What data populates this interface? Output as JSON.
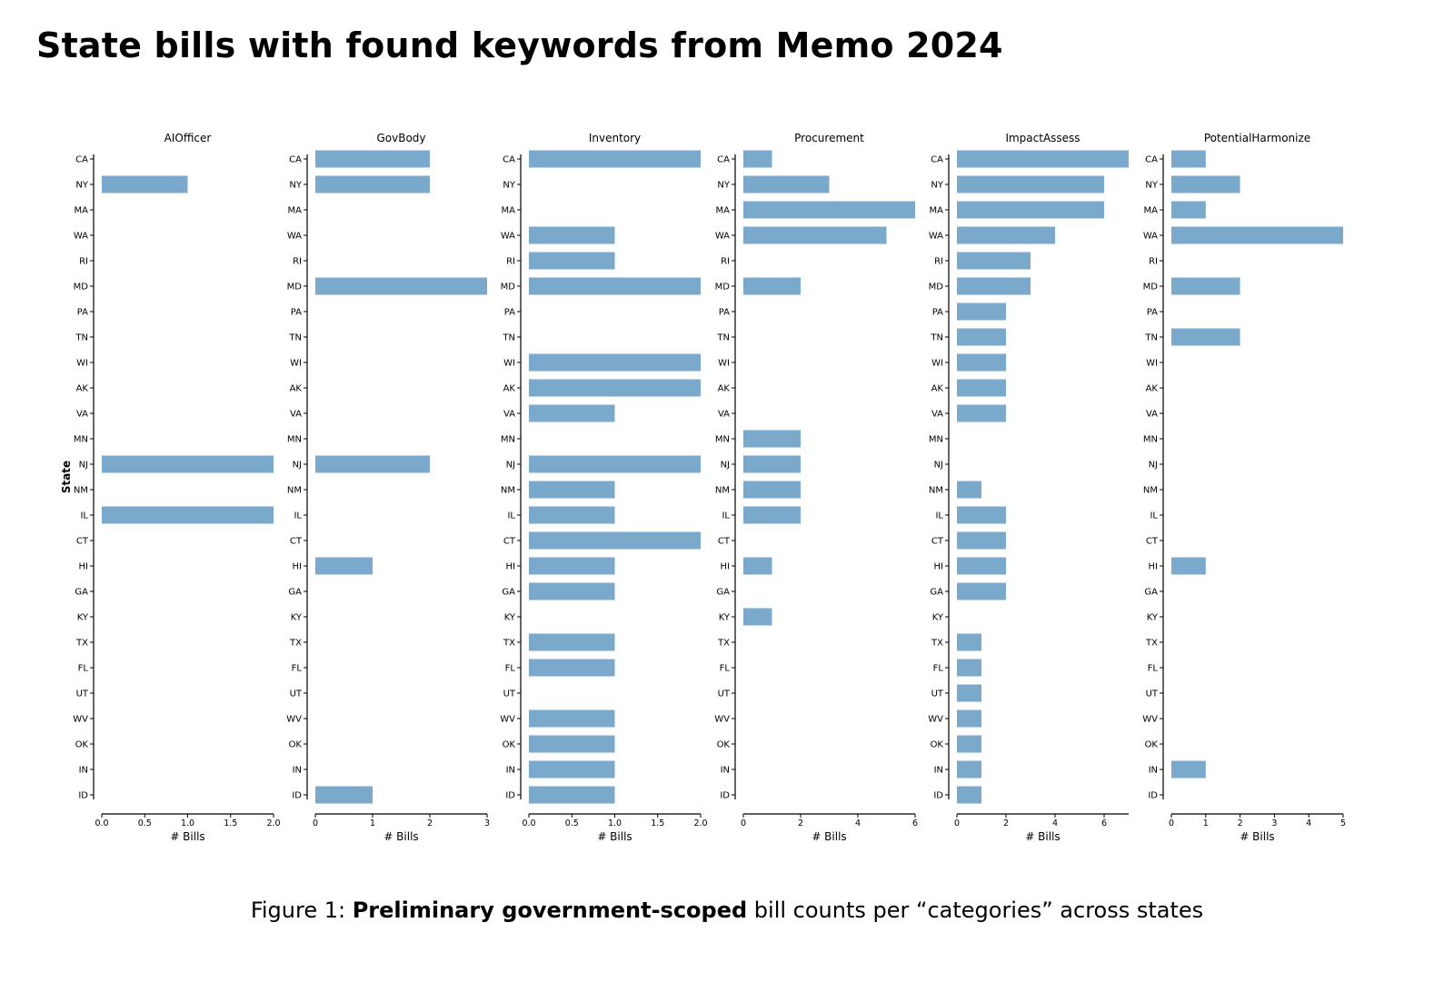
{
  "title": "State bills with found keywords from Memo 2024",
  "caption": {
    "prefix": "Figure 1: ",
    "bold": "Preliminary government-scoped",
    "rest": " bill counts per “categories” across states"
  },
  "colors": {
    "bar": "#7aa9cb",
    "axis": "#000000"
  },
  "chart_data": {
    "type": "bar",
    "orientation": "horizontal",
    "ylabel": "State",
    "xlabel": "# Bills",
    "categories": [
      "CA",
      "NY",
      "MA",
      "WA",
      "RI",
      "MD",
      "PA",
      "TN",
      "WI",
      "AK",
      "VA",
      "MN",
      "NJ",
      "NM",
      "IL",
      "CT",
      "HI",
      "GA",
      "KY",
      "TX",
      "FL",
      "UT",
      "WV",
      "OK",
      "IN",
      "ID"
    ],
    "panels": [
      {
        "name": "AIOfficer",
        "xlim": [
          0,
          2
        ],
        "xticks": [
          "0.0",
          "0.5",
          "1.0",
          "1.5",
          "2.0"
        ],
        "values": [
          0,
          1,
          0,
          0,
          0,
          0,
          0,
          0,
          0,
          0,
          0,
          0,
          2,
          0,
          2,
          0,
          0,
          0,
          0,
          0,
          0,
          0,
          0,
          0,
          0,
          0
        ]
      },
      {
        "name": "GovBody",
        "xlim": [
          0,
          3
        ],
        "xticks": [
          "0",
          "1",
          "2",
          "3"
        ],
        "values": [
          2,
          2,
          0,
          0,
          0,
          3,
          0,
          0,
          0,
          0,
          0,
          0,
          2,
          0,
          0,
          0,
          1,
          0,
          0,
          0,
          0,
          0,
          0,
          0,
          0,
          1
        ]
      },
      {
        "name": "Inventory",
        "xlim": [
          0,
          2
        ],
        "xticks": [
          "0.0",
          "0.5",
          "1.0",
          "1.5",
          "2.0"
        ],
        "values": [
          2,
          0,
          0,
          1,
          1,
          2,
          0,
          0,
          2,
          2,
          1,
          0,
          2,
          1,
          1,
          2,
          1,
          1,
          0,
          1,
          1,
          0,
          1,
          1,
          1,
          1
        ]
      },
      {
        "name": "Procurement",
        "xlim": [
          0,
          6
        ],
        "xticks": [
          "0",
          "2",
          "4",
          "6"
        ],
        "values": [
          1,
          3,
          6,
          5,
          0,
          2,
          0,
          0,
          0,
          0,
          0,
          2,
          2,
          2,
          2,
          0,
          1,
          0,
          1,
          0,
          0,
          0,
          0,
          0,
          0,
          0
        ]
      },
      {
        "name": "ImpactAssess",
        "xlim": [
          0,
          7
        ],
        "xticks": [
          "0",
          "2",
          "4",
          "6"
        ],
        "values": [
          7,
          6,
          6,
          4,
          3,
          3,
          2,
          2,
          2,
          2,
          2,
          0,
          0,
          1,
          2,
          2,
          2,
          2,
          0,
          1,
          1,
          1,
          1,
          1,
          1,
          1
        ]
      },
      {
        "name": "PotentialHarmonize",
        "xlim": [
          0,
          5
        ],
        "xticks": [
          "0",
          "1",
          "2",
          "3",
          "4",
          "5"
        ],
        "values": [
          1,
          2,
          1,
          5,
          0,
          2,
          0,
          2,
          0,
          0,
          0,
          0,
          0,
          0,
          0,
          0,
          1,
          0,
          0,
          0,
          0,
          0,
          0,
          0,
          1,
          0
        ]
      }
    ]
  }
}
